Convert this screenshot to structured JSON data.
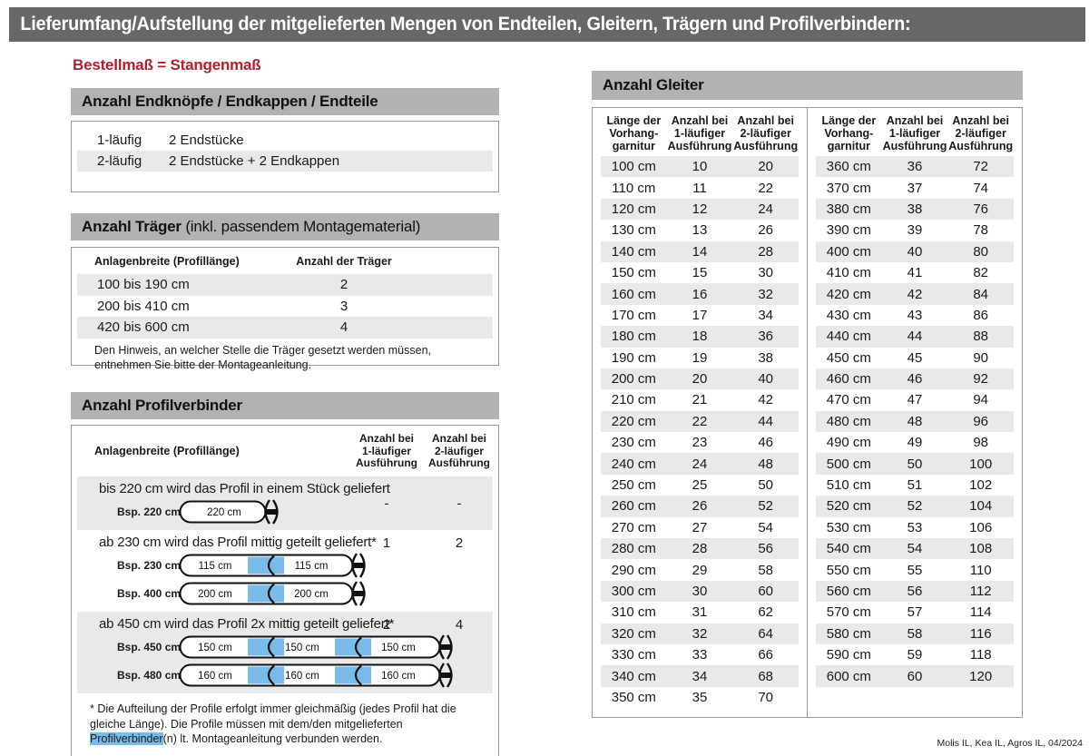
{
  "colors": {
    "topbar": "#666768",
    "section_bar": "#b2b2b2",
    "stripe": "#e9e9e9",
    "accent_red": "#b11f2f",
    "connector_blue": "#79bce9",
    "border": "#999999"
  },
  "page": {
    "title": "Lieferumfang/Aufstellung der mitgelieferten Mengen von Endteilen, Gleitern, Trägern und Profilverbindern:",
    "subtitle": "Bestellmaß = Stangenmaß",
    "footer": "Molis IL, Kea IL, Agros IL, 04/2024"
  },
  "endteile": {
    "header": "Anzahl Endknöpfe / Endkappen / Endteile",
    "rows": [
      [
        "1-läufig",
        "2 Endstücke"
      ],
      [
        "2-läufig",
        "2 Endstücke + 2 Endkappen"
      ]
    ]
  },
  "traeger": {
    "header_bold": "Anzahl Träger",
    "header_rest": " (inkl. passendem Montagematerial)",
    "col_width": "Anlagenbreite (Profillänge)",
    "col_count": "Anzahl der Träger",
    "rows": [
      [
        "100 bis 190 cm",
        "2"
      ],
      [
        "200 bis 410 cm",
        "3"
      ],
      [
        "420 bis 600 cm",
        "4"
      ]
    ],
    "note": "Den Hinweis, an welcher Stelle die Träger gesetzt werden müssen, entnehmen Sie bitte der Montageanleitung."
  },
  "profilverbinder": {
    "header": "Anzahl Profilverbinder",
    "col_width": "Anlagenbreite (Profillänge)",
    "col_1": "Anzahl bei\n1-läufiger\nAusführung",
    "col_2": "Anzahl bei\n2-läufiger\nAusführung",
    "rows": [
      {
        "text": "bis 220 cm wird das Profil in einem Stück geliefert",
        "count_1": "-",
        "count_2": "-",
        "diagrams": [
          {
            "label": "Bsp. 220 cm",
            "segments": [
              "220 cm"
            ]
          }
        ]
      },
      {
        "text": "ab 230 cm wird das Profil mittig geteilt geliefert*",
        "count_1": "1",
        "count_2": "2",
        "diagrams": [
          {
            "label": "Bsp. 230 cm",
            "segments": [
              "115 cm",
              "115 cm"
            ]
          },
          {
            "label": "Bsp. 400 cm",
            "segments": [
              "200 cm",
              "200 cm"
            ]
          }
        ]
      },
      {
        "text": "ab 450 cm wird das Profil 2x mittig geteilt geliefert*",
        "count_1": "2",
        "count_2": "4",
        "diagrams": [
          {
            "label": "Bsp. 450 cm",
            "segments": [
              "150 cm",
              "150 cm",
              "150 cm"
            ]
          },
          {
            "label": "Bsp. 480 cm",
            "segments": [
              "160 cm",
              "160 cm",
              "160 cm"
            ]
          }
        ]
      }
    ],
    "footnote_pre": "* Die Aufteilung der Profile erfolgt immer gleichmäßig (jedes Profil hat die gleiche Länge). Die Profile müssen mit dem/den mitgelieferten ",
    "footnote_highlight": "Profilverbinder",
    "footnote_post": "(n) lt. Montageanleitung verbunden werden."
  },
  "gleiter": {
    "header": "Anzahl Gleiter",
    "col_length": "Länge der\nVorhang-\ngarnitur",
    "col_1": "Anzahl bei\n1-läufiger\nAusführung",
    "col_2": "Anzahl bei\n2-läufiger\nAusführung",
    "left_rows": [
      [
        "100 cm",
        "10",
        "20"
      ],
      [
        "110 cm",
        "11",
        "22"
      ],
      [
        "120 cm",
        "12",
        "24"
      ],
      [
        "130 cm",
        "13",
        "26"
      ],
      [
        "140 cm",
        "14",
        "28"
      ],
      [
        "150 cm",
        "15",
        "30"
      ],
      [
        "160 cm",
        "16",
        "32"
      ],
      [
        "170 cm",
        "17",
        "34"
      ],
      [
        "180 cm",
        "18",
        "36"
      ],
      [
        "190 cm",
        "19",
        "38"
      ],
      [
        "200 cm",
        "20",
        "40"
      ],
      [
        "210 cm",
        "21",
        "42"
      ],
      [
        "220 cm",
        "22",
        "44"
      ],
      [
        "230 cm",
        "23",
        "46"
      ],
      [
        "240 cm",
        "24",
        "48"
      ],
      [
        "250 cm",
        "25",
        "50"
      ],
      [
        "260 cm",
        "26",
        "52"
      ],
      [
        "270 cm",
        "27",
        "54"
      ],
      [
        "280 cm",
        "28",
        "56"
      ],
      [
        "290 cm",
        "29",
        "58"
      ],
      [
        "300 cm",
        "30",
        "60"
      ],
      [
        "310 cm",
        "31",
        "62"
      ],
      [
        "320 cm",
        "32",
        "64"
      ],
      [
        "330 cm",
        "33",
        "66"
      ],
      [
        "340 cm",
        "34",
        "68"
      ],
      [
        "350 cm",
        "35",
        "70"
      ]
    ],
    "right_rows": [
      [
        "360 cm",
        "36",
        "72"
      ],
      [
        "370 cm",
        "37",
        "74"
      ],
      [
        "380 cm",
        "38",
        "76"
      ],
      [
        "390 cm",
        "39",
        "78"
      ],
      [
        "400 cm",
        "40",
        "80"
      ],
      [
        "410 cm",
        "41",
        "82"
      ],
      [
        "420 cm",
        "42",
        "84"
      ],
      [
        "430 cm",
        "43",
        "86"
      ],
      [
        "440 cm",
        "44",
        "88"
      ],
      [
        "450 cm",
        "45",
        "90"
      ],
      [
        "460 cm",
        "46",
        "92"
      ],
      [
        "470 cm",
        "47",
        "94"
      ],
      [
        "480 cm",
        "48",
        "96"
      ],
      [
        "490 cm",
        "49",
        "98"
      ],
      [
        "500 cm",
        "50",
        "100"
      ],
      [
        "510 cm",
        "51",
        "102"
      ],
      [
        "520 cm",
        "52",
        "104"
      ],
      [
        "530 cm",
        "53",
        "106"
      ],
      [
        "540 cm",
        "54",
        "108"
      ],
      [
        "550 cm",
        "55",
        "110"
      ],
      [
        "560 cm",
        "56",
        "112"
      ],
      [
        "570 cm",
        "57",
        "114"
      ],
      [
        "580 cm",
        "58",
        "116"
      ],
      [
        "590 cm",
        "59",
        "118"
      ],
      [
        "600 cm",
        "60",
        "120"
      ]
    ]
  }
}
